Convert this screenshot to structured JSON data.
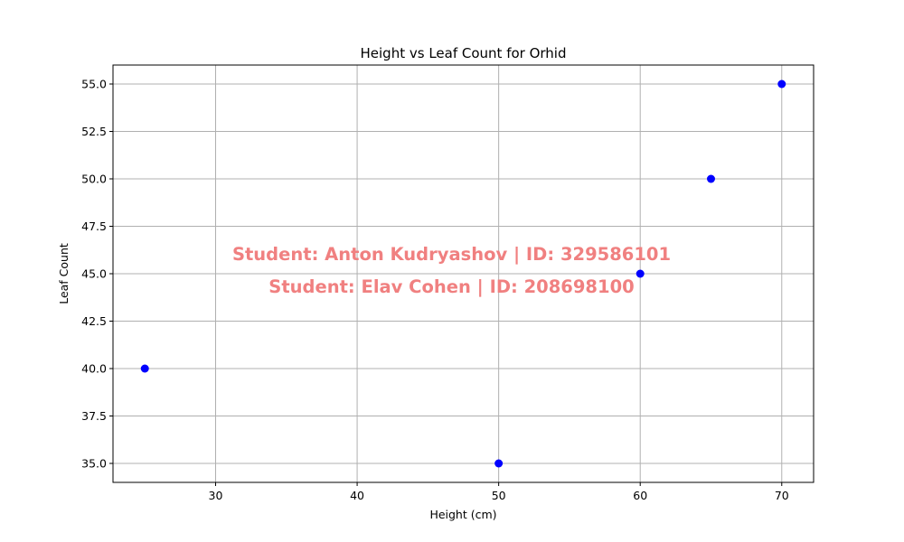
{
  "chart_data": {
    "type": "scatter",
    "title": "Height vs Leaf Count for Orhid",
    "xlabel": "Height (cm)",
    "ylabel": "Leaf Count",
    "xlim": [
      22.75,
      72.25
    ],
    "ylim": [
      34.0,
      56.0
    ],
    "xticks": [
      30,
      40,
      50,
      60,
      70
    ],
    "xtick_labels": [
      "30",
      "40",
      "50",
      "60",
      "70"
    ],
    "yticks": [
      35.0,
      37.5,
      40.0,
      42.5,
      45.0,
      47.5,
      50.0,
      52.5,
      55.0
    ],
    "ytick_labels": [
      "35.0",
      "37.5",
      "40.0",
      "42.5",
      "45.0",
      "47.5",
      "50.0",
      "52.5",
      "55.0"
    ],
    "grid": true,
    "marker_color": "#0000ff",
    "series": [
      {
        "points": [
          {
            "x": 25,
            "y": 40
          },
          {
            "x": 50,
            "y": 35
          },
          {
            "x": 60,
            "y": 45
          },
          {
            "x": 65,
            "y": 50
          },
          {
            "x": 70,
            "y": 55
          }
        ]
      }
    ],
    "annotations": [
      "Student: Anton Kudryashov | ID: 329586101",
      "Student: Elav Cohen | ID: 208698100"
    ],
    "annotation_color": "#f08080"
  }
}
